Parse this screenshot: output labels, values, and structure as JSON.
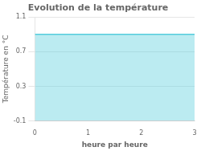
{
  "chart_data": {
    "type": "area",
    "title": "Evolution de la température",
    "xlabel": "heure par heure",
    "ylabel": "Température en °C",
    "x": [
      0,
      3
    ],
    "series": [
      {
        "color": "#55ccdd",
        "values": [
          0.9,
          0.9
        ]
      }
    ],
    "xlim": [
      0,
      3
    ],
    "ylim": [
      -0.1,
      1.1
    ],
    "xticks": [
      0,
      1,
      2,
      3
    ],
    "yticks": [
      -0.1,
      0.3,
      0.7,
      1.1
    ],
    "grid": "y"
  }
}
